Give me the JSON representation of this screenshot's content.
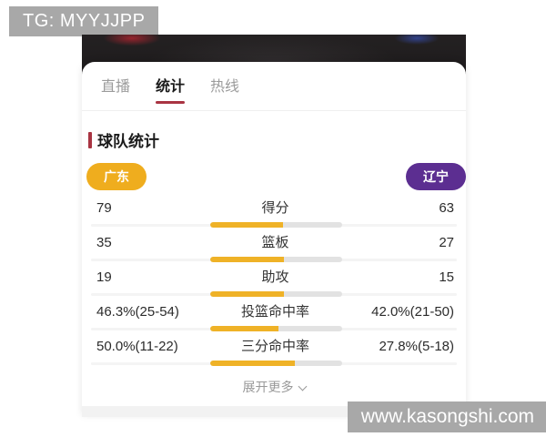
{
  "watermark_top": {
    "text": "TG: MYYJJPP"
  },
  "watermark_bottom": {
    "text": "www.kasongshi.com"
  },
  "tabs": {
    "live": "直播",
    "stats": "统计",
    "hotline": "热线"
  },
  "section_title": "球队统计",
  "teams": {
    "home": {
      "name": "广东",
      "color": "#efad1e"
    },
    "away": {
      "name": "辽宁",
      "color": "#5c2e91"
    }
  },
  "stats": [
    {
      "label": "得分",
      "home_display": "79",
      "away_display": "63",
      "home_value": 79,
      "away_value": 63
    },
    {
      "label": "篮板",
      "home_display": "35",
      "away_display": "27",
      "home_value": 35,
      "away_value": 27
    },
    {
      "label": "助攻",
      "home_display": "19",
      "away_display": "15",
      "home_value": 19,
      "away_value": 15
    },
    {
      "label": "投篮命中率",
      "home_display": "46.3%(25-54)",
      "away_display": "42.0%(21-50)",
      "home_value": 46.3,
      "away_value": 42.0
    },
    {
      "label": "三分命中率",
      "home_display": "50.0%(11-22)",
      "away_display": "27.8%(5-18)",
      "home_value": 50.0,
      "away_value": 27.8
    }
  ],
  "expand_more": "展开更多",
  "colors": {
    "accent_red": "#a93442",
    "bar_home": "#efb227",
    "bar_rest": "#e2e2e2",
    "watermark_bg": "#a8a8a8"
  }
}
